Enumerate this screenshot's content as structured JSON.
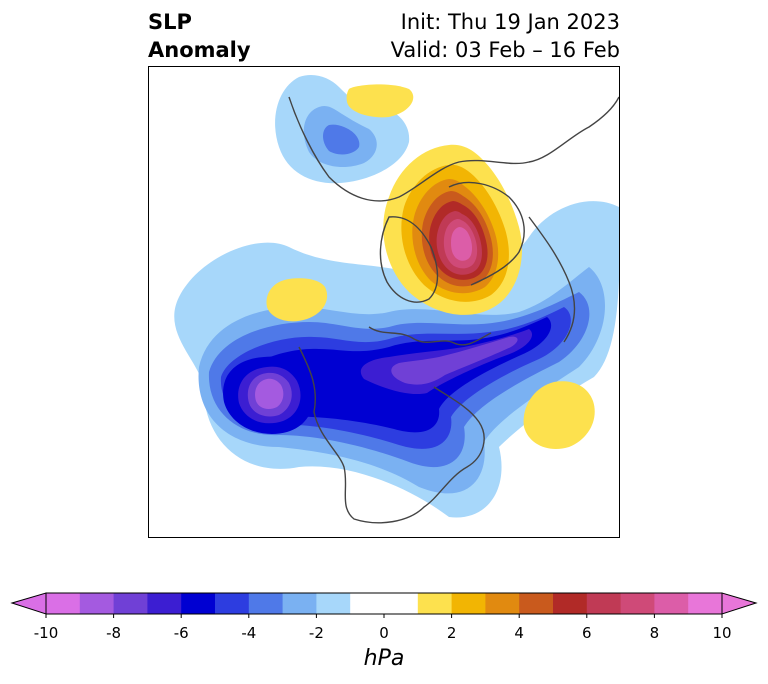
{
  "title": {
    "left_line1": "SLP",
    "left_line2": "Anomaly",
    "right_line1": "Init: Thu 19 Jan 2023",
    "right_line2": "Valid: 03 Feb – 16 Feb"
  },
  "colorbar": {
    "unit": "hPa",
    "tick_labels": [
      "-10",
      "-8",
      "-6",
      "-4",
      "-2",
      "0",
      "2",
      "4",
      "6",
      "8",
      "10"
    ],
    "min": -10,
    "max": 10,
    "extend": "both",
    "colors": [
      "#da6fe6",
      "#a45ae0",
      "#7040d6",
      "#3c1ed2",
      "#0000d2",
      "#2d3de0",
      "#4f79e8",
      "#7ab1f2",
      "#a7d7fa",
      "#ffffff",
      "#ffffff",
      "#fde14e",
      "#f2b503",
      "#e18a10",
      "#c95a1d",
      "#b12a27",
      "#c03a55",
      "#cf4a78",
      "#dc5da8",
      "#e876d9"
    ]
  },
  "map": {
    "projection": "north polar stereographic",
    "features": [
      "coastlines",
      "country borders",
      "US state borders",
      "Canadian province borders"
    ],
    "anomalies": [
      {
        "region": "Arctic Ocean / north of Siberia",
        "sign": "positive",
        "peak_hPa": 9
      },
      {
        "region": "Gulf of Alaska / North Pacific",
        "sign": "negative",
        "peak_hPa": -9
      },
      {
        "region": "Canada / Hudson Bay",
        "sign": "negative",
        "peak_hPa": -7
      },
      {
        "region": "Northern Europe / Scandinavia",
        "sign": "negative",
        "peak_hPa": -4
      },
      {
        "region": "Subtropical North Atlantic",
        "sign": "positive",
        "peak_hPa": 2
      },
      {
        "region": "Eastern North Pacific (west of Mexico)",
        "sign": "positive",
        "peak_hPa": 2
      }
    ]
  }
}
